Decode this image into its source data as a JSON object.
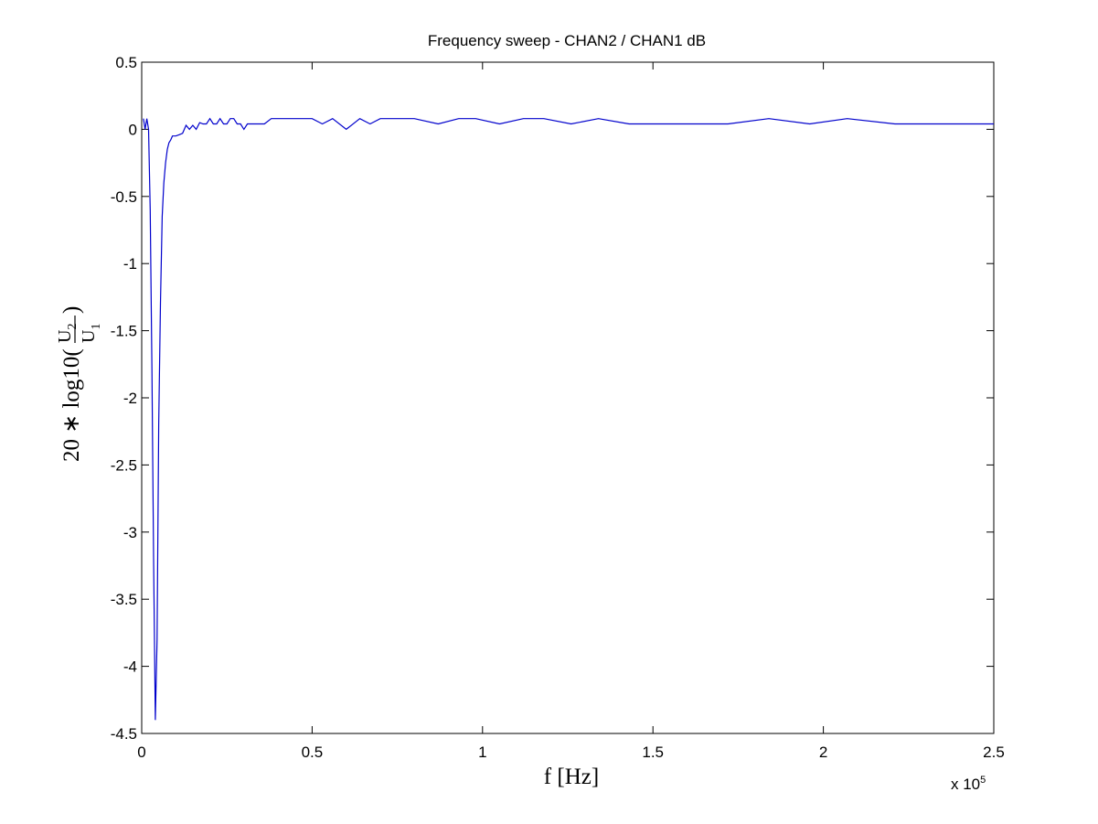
{
  "figure": {
    "background": "#ffffff",
    "axes_color": "#000000",
    "line_color": "#0000cc"
  },
  "chart_data": {
    "type": "line",
    "title": "Frequency sweep - CHAN2 / CHAN1 dB",
    "xlabel": "f [Hz]",
    "ylabel": {
      "prefix": "20 ∗ log10(",
      "numerator": "U",
      "numerator_sub": "2",
      "denominator": "U",
      "denominator_sub": "1",
      "suffix": ")"
    },
    "x_exponent_label": "x 10",
    "x_exponent_power": "5",
    "xlim": [
      0,
      250000
    ],
    "ylim": [
      -4.5,
      0.5
    ],
    "xticks": [
      0,
      50000,
      100000,
      150000,
      200000,
      250000
    ],
    "xtick_labels": [
      "0",
      "0.5",
      "1",
      "1.5",
      "2",
      "2.5"
    ],
    "yticks": [
      0.5,
      0,
      -0.5,
      -1,
      -1.5,
      -2,
      -2.5,
      -3,
      -3.5,
      -4,
      -4.5
    ],
    "ytick_labels": [
      "0.5",
      "0",
      "-0.5",
      "-1",
      "-1.5",
      "-2",
      "-2.5",
      "-3",
      "-3.5",
      "-4",
      "-4.5"
    ],
    "grid": false,
    "series": [
      {
        "x": [
          500,
          1000,
          1500,
          2000,
          2500,
          3000,
          3500,
          4000,
          4500,
          5000,
          5500,
          6000,
          6500,
          7000,
          7500,
          8000,
          8500,
          9000,
          10000,
          11000,
          12000,
          13000,
          14000,
          15000,
          16000,
          17000,
          18000,
          19000,
          20000,
          21000,
          22000,
          23000,
          24000,
          25000,
          26000,
          27000,
          28000,
          29000,
          30000,
          31000,
          32000,
          33000,
          34000,
          36000,
          38000,
          40000,
          45000,
          50000,
          53000,
          56000,
          60000,
          64000,
          67000,
          70000,
          75000,
          80000,
          87000,
          93000,
          98000,
          105000,
          112000,
          118000,
          126000,
          134000,
          143000,
          155000,
          172000,
          184000,
          196000,
          207000,
          221000,
          235000,
          250000
        ],
        "values": [
          0.08,
          0.0,
          0.08,
          0.0,
          -0.6,
          -1.8,
          -3.2,
          -4.4,
          -3.8,
          -2.2,
          -1.3,
          -0.65,
          -0.4,
          -0.25,
          -0.15,
          -0.1,
          -0.08,
          -0.05,
          -0.05,
          -0.04,
          -0.03,
          0.03,
          0.0,
          0.03,
          0.0,
          0.05,
          0.04,
          0.04,
          0.08,
          0.04,
          0.04,
          0.08,
          0.04,
          0.04,
          0.08,
          0.08,
          0.04,
          0.04,
          0.0,
          0.04,
          0.04,
          0.04,
          0.04,
          0.04,
          0.08,
          0.08,
          0.08,
          0.08,
          0.04,
          0.08,
          0.0,
          0.08,
          0.04,
          0.08,
          0.08,
          0.08,
          0.04,
          0.08,
          0.08,
          0.04,
          0.08,
          0.08,
          0.04,
          0.08,
          0.04,
          0.04,
          0.04,
          0.08,
          0.04,
          0.08,
          0.04,
          0.04,
          0.04
        ]
      }
    ]
  }
}
